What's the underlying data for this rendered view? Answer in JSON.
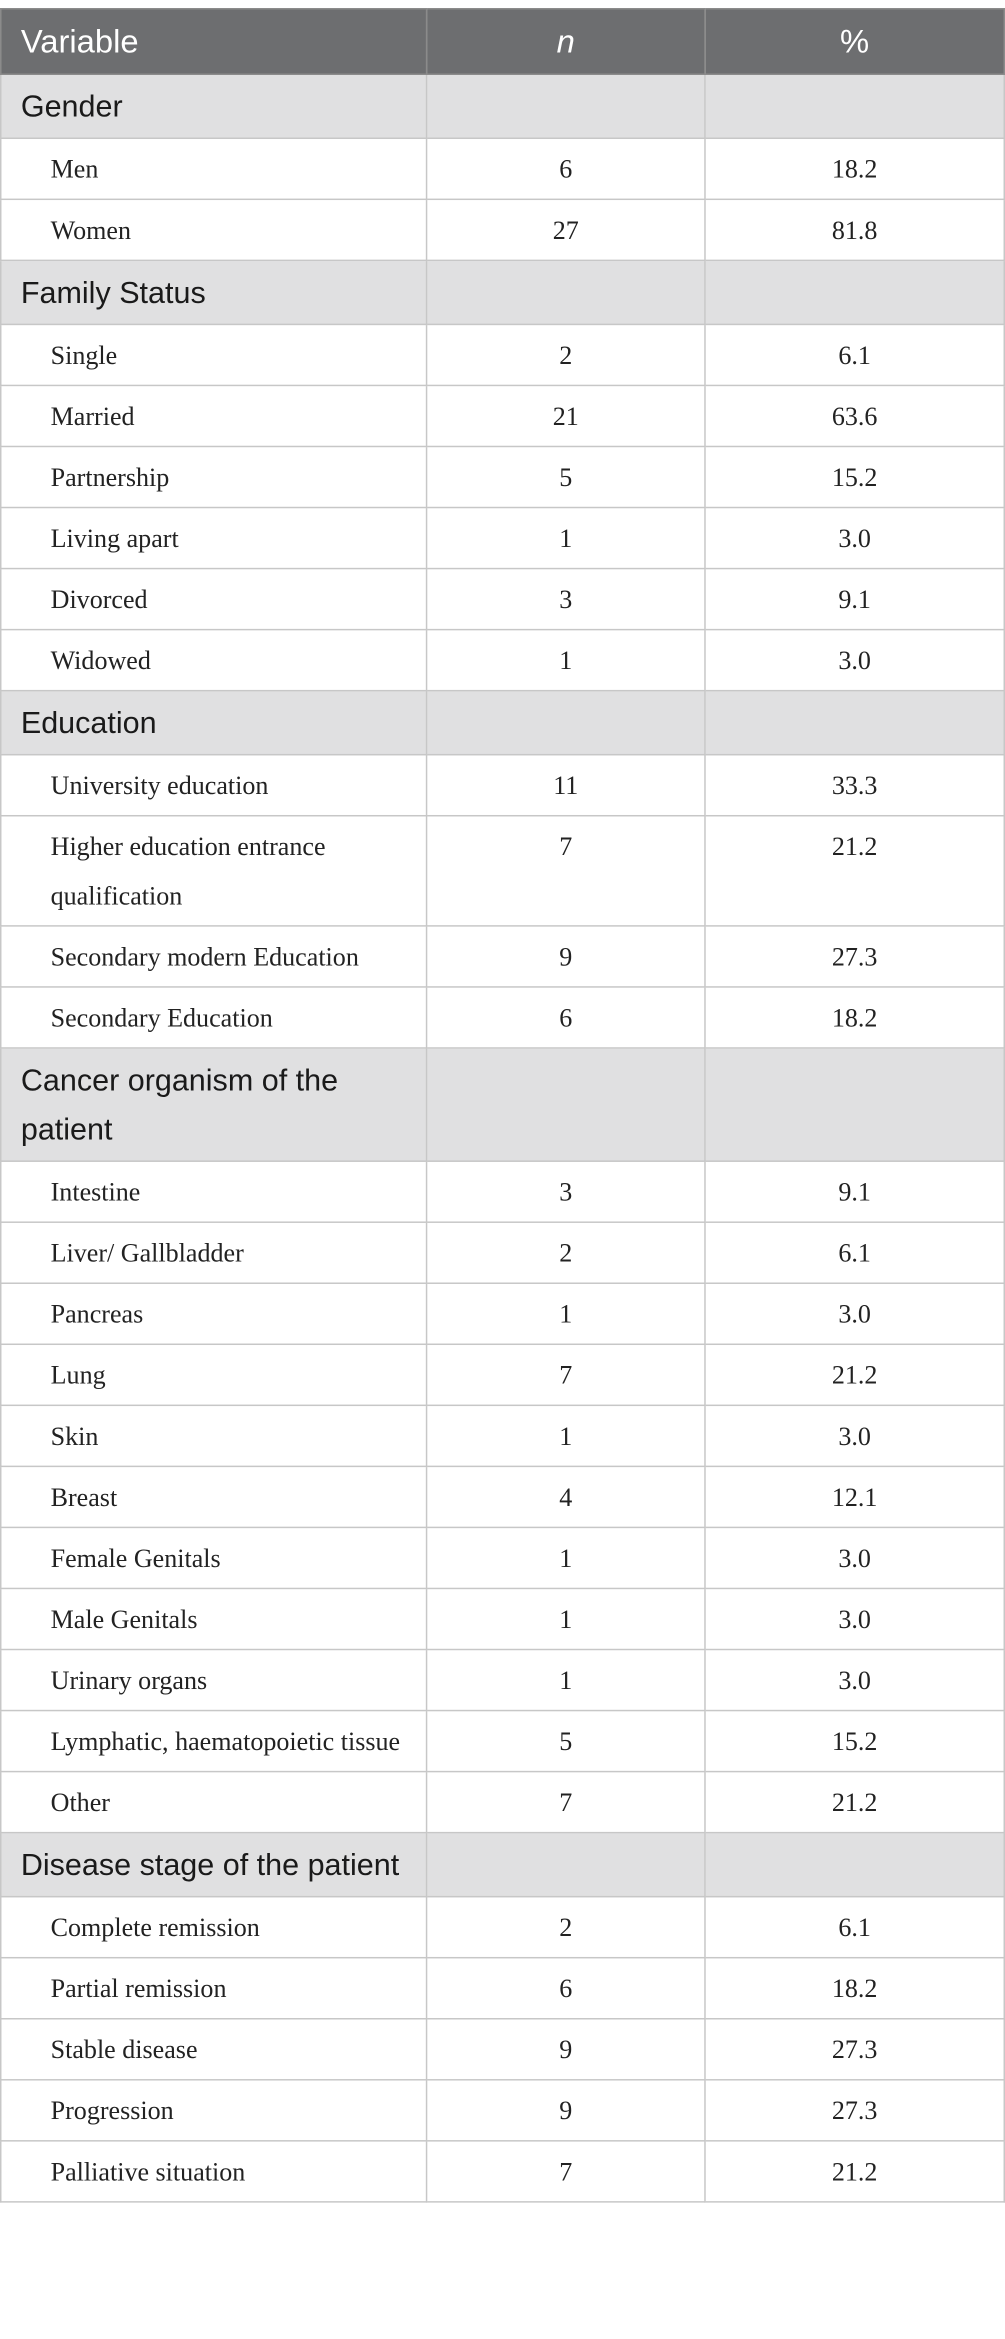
{
  "header": {
    "variable": "Variable",
    "n": "n",
    "pct": "%"
  },
  "sections": [
    {
      "label": "Gender",
      "rows": [
        {
          "label": "Men",
          "n": "6",
          "pct": "18.2"
        },
        {
          "label": "Women",
          "n": "27",
          "pct": "81.8"
        }
      ]
    },
    {
      "label": "Family Status",
      "rows": [
        {
          "label": "Single",
          "n": "2",
          "pct": "6.1"
        },
        {
          "label": "Married",
          "n": "21",
          "pct": "63.6"
        },
        {
          "label": "Partnership",
          "n": "5",
          "pct": "15.2"
        },
        {
          "label": "Living apart",
          "n": "1",
          "pct": "3.0"
        },
        {
          "label": "Divorced",
          "n": "3",
          "pct": "9.1"
        },
        {
          "label": "Widowed",
          "n": "1",
          "pct": "3.0"
        }
      ]
    },
    {
      "label": "Education",
      "rows": [
        {
          "label": "University education",
          "n": "11",
          "pct": "33.3"
        },
        {
          "label": "Higher education entrance qualification",
          "n": "7",
          "pct": "21.2"
        },
        {
          "label": "Secondary modern Education",
          "n": "9",
          "pct": "27.3"
        },
        {
          "label": "Secondary Education",
          "n": "6",
          "pct": "18.2"
        }
      ]
    },
    {
      "label": "Cancer organism of the patient",
      "rows": [
        {
          "label": "Intestine",
          "n": "3",
          "pct": "9.1"
        },
        {
          "label": "Liver/ Gallbladder",
          "n": "2",
          "pct": "6.1"
        },
        {
          "label": "Pancreas",
          "n": "1",
          "pct": "3.0"
        },
        {
          "label": "Lung",
          "n": "7",
          "pct": "21.2"
        },
        {
          "label": "Skin",
          "n": "1",
          "pct": "3.0"
        },
        {
          "label": "Breast",
          "n": "4",
          "pct": "12.1"
        },
        {
          "label": "Female Genitals",
          "n": "1",
          "pct": "3.0"
        },
        {
          "label": "Male Genitals",
          "n": "1",
          "pct": "3.0"
        },
        {
          "label": "Urinary organs",
          "n": "1",
          "pct": "3.0"
        },
        {
          "label": "Lymphatic, haematopoietic tissue",
          "n": "5",
          "pct": "15.2"
        },
        {
          "label": "Other",
          "n": "7",
          "pct": "21.2"
        }
      ]
    },
    {
      "label": "Disease stage of the patient",
      "rows": [
        {
          "label": "Complete remission",
          "n": "2",
          "pct": "6.1"
        },
        {
          "label": "Partial remission",
          "n": "6",
          "pct": "18.2"
        },
        {
          "label": "Stable disease",
          "n": "9",
          "pct": "27.3"
        },
        {
          "label": "Progression",
          "n": "9",
          "pct": "27.3"
        },
        {
          "label": "Palliative situation",
          "n": "7",
          "pct": "21.2"
        }
      ]
    }
  ],
  "colors": {
    "header_bg": "#6d6e70",
    "section_bg": "#e0e0e1",
    "border": "#c7c7c7"
  }
}
